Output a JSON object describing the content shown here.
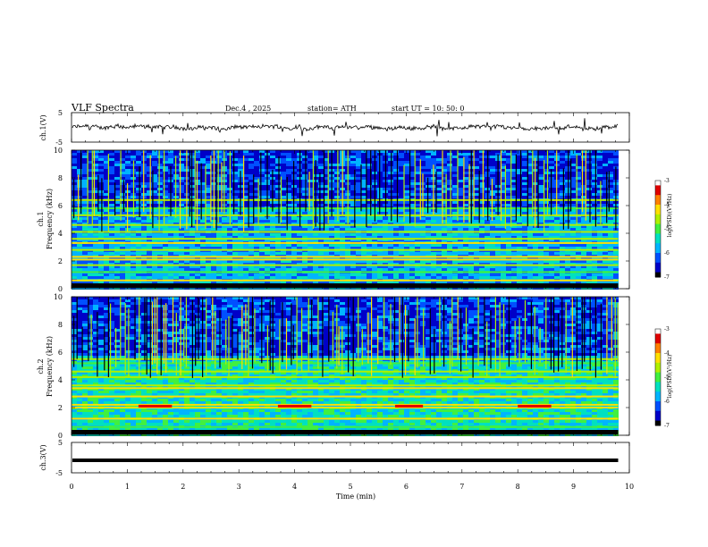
{
  "header": {
    "title": "VLF  Spectra",
    "date": "Dec.4  , 2025",
    "station": "station= ATH",
    "start": "start  UT  =    10: 50: 0"
  },
  "colors": {
    "background": "#ffffff",
    "trace": "#000000",
    "colormap": [
      "#000000",
      "#0000c8",
      "#0050ff",
      "#00b4ff",
      "#00e0c0",
      "#40f040",
      "#b0f000",
      "#ffe000",
      "#ff8000",
      "#e00000",
      "#ffffff"
    ]
  },
  "chart_data": [
    {
      "panel": "ch1-waveform",
      "type": "line",
      "ylabel": "ch.1(V)",
      "ylim": [
        -5,
        5
      ],
      "y_ticks": [
        "5",
        "-5"
      ],
      "xlim": [
        0,
        10
      ],
      "description_values": {
        "baseline_V": 0,
        "typical_amplitude_V": 1,
        "x_end_min": 9.8
      }
    },
    {
      "panel": "ch1-spectrogram",
      "type": "heatmap",
      "ylabel_line1": "ch.1",
      "ylabel_line2": "Frequency  (kHz)",
      "ylim": [
        0,
        10
      ],
      "y_ticks": [
        "0",
        "2",
        "4",
        "6",
        "8",
        "10"
      ],
      "xlim": [
        0,
        10
      ],
      "x_end_min": 9.8,
      "colorbar": {
        "label": "log(PSD)(V²/Hz)",
        "ticks": [
          "-3",
          "-4",
          "-5",
          "-6",
          "-7"
        ],
        "range": [
          -7,
          -3
        ]
      },
      "bands_khz": [
        0.3,
        0.6,
        1.2,
        1.7,
        2.1,
        2.3,
        2.8,
        3.3,
        3.6,
        4.1,
        4.6,
        5.3,
        5.8,
        6.4
      ]
    },
    {
      "panel": "ch2-spectrogram",
      "type": "heatmap",
      "ylabel_line1": "ch.2",
      "ylabel_line2": "Frequency  (kHz)",
      "ylim": [
        0,
        10
      ],
      "y_ticks": [
        "0",
        "2",
        "4",
        "6",
        "8",
        "10"
      ],
      "xlim": [
        0,
        10
      ],
      "x_end_min": 9.8,
      "colorbar": {
        "label": "log(PSD)(V²/Hz)",
        "ticks": [
          "-3",
          "-4",
          "-5",
          "-6",
          "-7"
        ],
        "range": [
          -7,
          -3
        ]
      },
      "bands_khz": [
        0.3,
        0.6,
        1.2,
        2.0,
        2.2,
        2.8,
        3.4,
        3.6,
        4.2,
        4.6,
        5.2,
        5.5
      ],
      "interference_intervals_min": [
        [
          1.2,
          1.8
        ],
        [
          3.7,
          4.3
        ],
        [
          5.8,
          6.3
        ],
        [
          8.0,
          8.6
        ]
      ]
    },
    {
      "panel": "ch3-waveform",
      "type": "line",
      "ylabel": "ch.3(V)",
      "ylim": [
        -5,
        5
      ],
      "y_ticks": [
        "5",
        "-5"
      ],
      "xlim": [
        0,
        10
      ],
      "description_values": {
        "baseline_V": 0,
        "x_end_min": 9.8
      }
    }
  ],
  "xaxis": {
    "label": "Time  (min)",
    "ticks": [
      "0",
      "1",
      "2",
      "3",
      "4",
      "5",
      "6",
      "7",
      "8",
      "9",
      "10"
    ]
  }
}
